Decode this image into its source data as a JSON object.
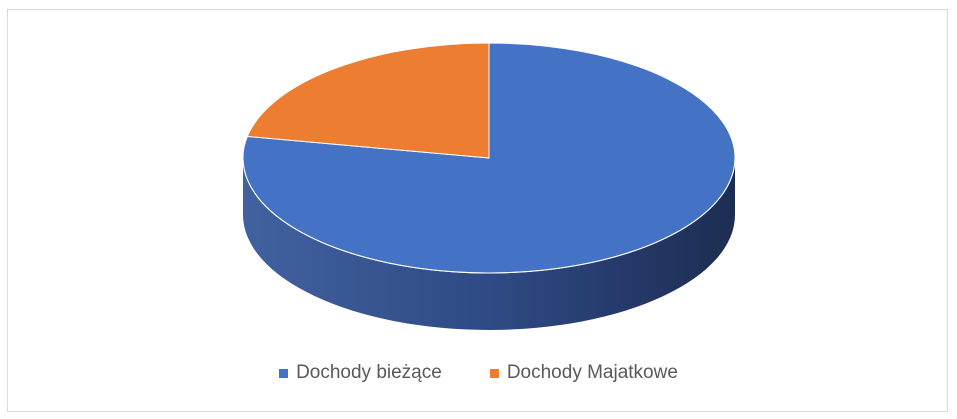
{
  "chart_data": {
    "type": "pie",
    "style": "3d",
    "title": "",
    "categories": [
      "Dochody bieżące",
      "Dochody Majatkowe"
    ],
    "values": [
      78,
      22
    ],
    "value_unit": "percent",
    "colors": [
      "#4472C4",
      "#ED7D31"
    ],
    "legend_position": "bottom"
  }
}
